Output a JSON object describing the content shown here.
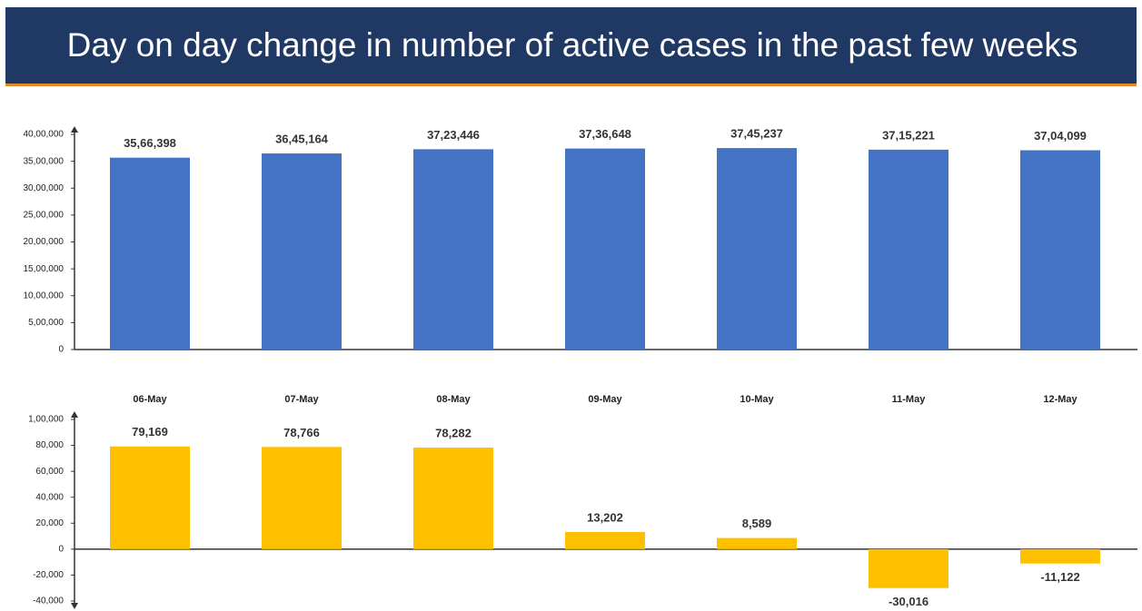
{
  "title": "Day on day change in number of active cases in the past few weeks",
  "chart_data": [
    {
      "type": "bar",
      "categories": [
        "06-May",
        "07-May",
        "08-May",
        "09-May",
        "10-May",
        "11-May",
        "12-May"
      ],
      "values": [
        3566398,
        3645164,
        3723446,
        3736648,
        3745237,
        3715221,
        3704099
      ],
      "value_labels": [
        "35,66,398",
        "36,45,164",
        "37,23,446",
        "37,36,648",
        "37,45,237",
        "37,15,221",
        "37,04,099"
      ],
      "color": "#4472c4",
      "ylim": [
        0,
        4000000
      ],
      "yticks": [
        0,
        {
          "value": 500000,
          "label": "5,00,000"
        },
        {
          "value": 1000000,
          "label": "10,00,000"
        },
        {
          "value": 1500000,
          "label": "15,00,000"
        },
        {
          "value": 2000000,
          "label": "20,00,000"
        },
        {
          "value": 2500000,
          "label": "25,00,000"
        },
        {
          "value": 3000000,
          "label": "30,00,000"
        },
        {
          "value": 3500000,
          "label": "35,00,000"
        },
        {
          "value": 4000000,
          "label": "40,00,000"
        }
      ]
    },
    {
      "type": "bar",
      "values": [
        79169,
        78766,
        78282,
        13202,
        8589,
        -30016,
        -11122
      ],
      "value_labels": [
        "79,169",
        "78,766",
        "78,282",
        "13,202",
        "8,589",
        "-30,016",
        "-11,122"
      ],
      "color": "#ffc000",
      "ylim": [
        -40000,
        100000
      ],
      "yticks": [
        {
          "value": -40000,
          "label": "-40,000"
        },
        {
          "value": -20000,
          "label": "-20,000"
        },
        0,
        {
          "value": 20000,
          "label": "20,000"
        },
        {
          "value": 40000,
          "label": "40,000"
        },
        {
          "value": 60000,
          "label": "60,000"
        },
        {
          "value": 80000,
          "label": "80,000"
        },
        {
          "value": 100000,
          "label": "1,00,000"
        }
      ]
    }
  ]
}
